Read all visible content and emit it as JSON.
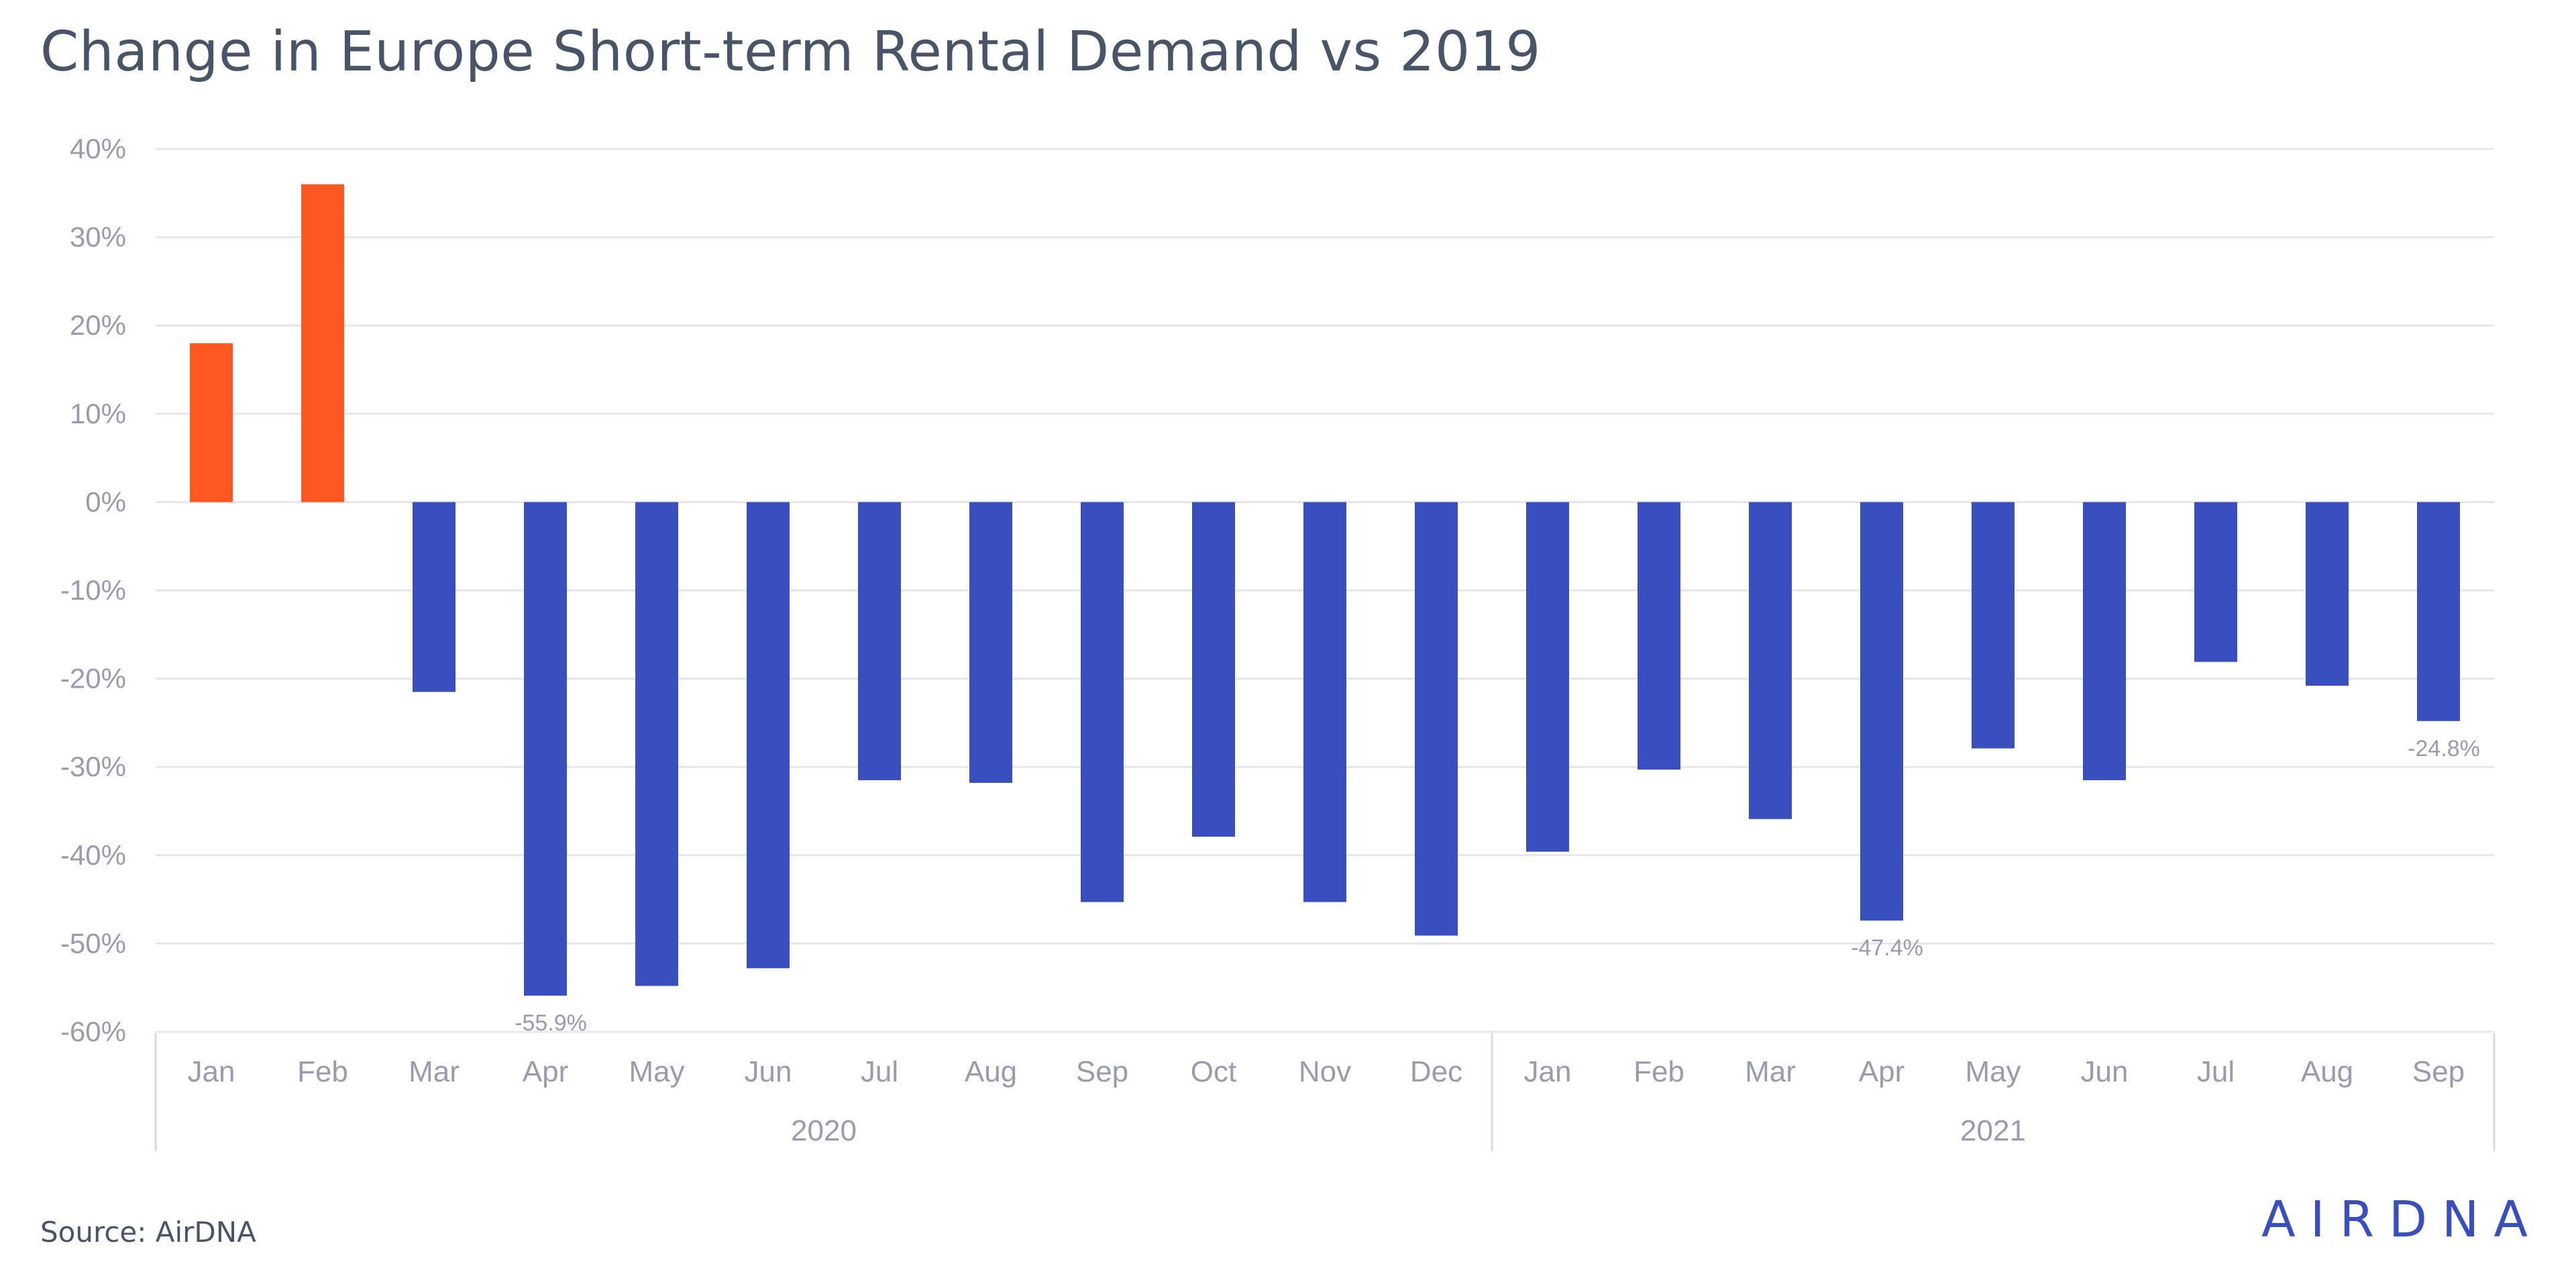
{
  "chart_data": {
    "type": "bar",
    "title": "Change in Europe Short-term Rental Demand vs 2019",
    "categories": [
      "Jan",
      "Feb",
      "Mar",
      "Apr",
      "May",
      "Jun",
      "Jul",
      "Aug",
      "Sep",
      "Oct",
      "Nov",
      "Dec",
      "Jan",
      "Feb",
      "Mar",
      "Apr",
      "May",
      "Jun",
      "Jul",
      "Aug",
      "Sep"
    ],
    "groups": [
      {
        "label": "2020",
        "count": 12
      },
      {
        "label": "2021",
        "count": 9
      }
    ],
    "values": [
      18,
      36,
      -21.5,
      -55.9,
      -54.8,
      -52.8,
      -31.5,
      -31.8,
      -45.3,
      -37.9,
      -45.3,
      -49.1,
      -39.6,
      -30.3,
      -35.9,
      -47.4,
      -27.9,
      -31.5,
      -18.1,
      -20.8,
      -24.8
    ],
    "data_labels": {
      "3": "-55.9%",
      "15": "-47.4%",
      "20": "-24.8%"
    },
    "ylim": [
      -60,
      40
    ],
    "yticks": [
      40,
      30,
      20,
      10,
      0,
      -10,
      -20,
      -30,
      -40,
      -50,
      -60
    ],
    "ytick_labels": [
      "40%",
      "30%",
      "20%",
      "10%",
      "0%",
      "-10%",
      "-20%",
      "-30%",
      "-40%",
      "-50%",
      "-60%"
    ],
    "colors": {
      "positive": "#ff5722",
      "negative": "#3a4fbf",
      "grid": "#e6e6ea",
      "text": "#9a9cad",
      "axis": "#d9d9de"
    },
    "grid": true,
    "legend": "none"
  },
  "footer": {
    "source": "Source: AirDNA",
    "brand": "AIRDNA"
  }
}
